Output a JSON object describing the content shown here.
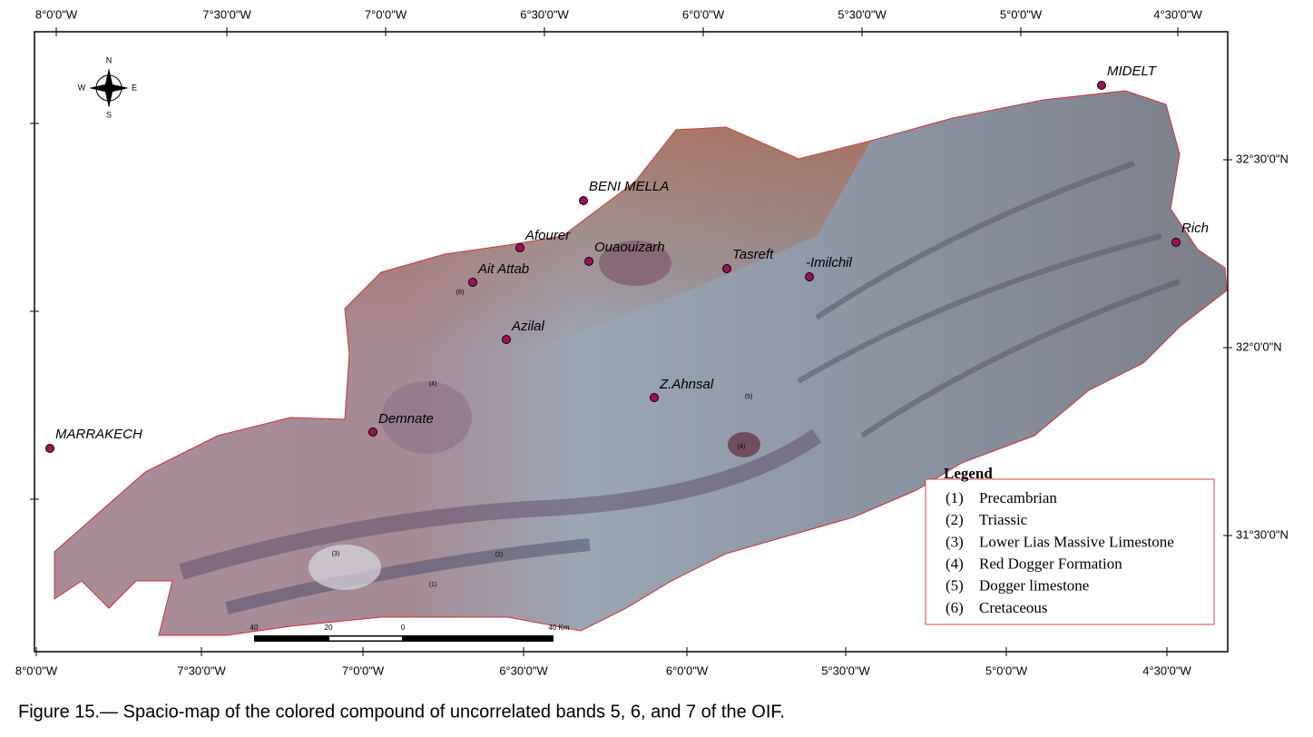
{
  "map": {
    "longitude_labels_top": [
      "8°0'0\"W",
      "7°30'0\"W",
      "7°0'0\"W",
      "6°30'0\"W",
      "6°0'0\"W",
      "5°30'0\"W",
      "5°0'0\"W",
      "4°30'0\"W"
    ],
    "longitude_labels_bottom": [
      "8°0'0\"W",
      "7°30'0\"W",
      "7°0'0\"W",
      "6°30'0\"W",
      "6°0'0\"W",
      "5°30'0\"W",
      "5°0'0\"W",
      "4°30'0\"W"
    ],
    "latitude_labels": [
      "32°30'0\"N",
      "32°0'0\"N",
      "31°30'0\"N"
    ],
    "compass": {
      "north": "N",
      "south": "S",
      "east": "E",
      "west": "W"
    },
    "cities": [
      "MIDELT",
      "BENI MELLA",
      "Afourer",
      "Ouaouizarh",
      "Ait Attab",
      "Tasreft",
      "-Imilchil",
      "Rich",
      "Azilal",
      "Z.Ahnsal",
      "Demnate",
      "MARRAKECH"
    ],
    "unit_labels": [
      "(6)",
      "(4)",
      "(5)",
      "(4)",
      "(3)",
      "(2)",
      "(1)"
    ],
    "scale_bar": [
      "40",
      "20",
      "0",
      "40 Km"
    ],
    "legend": {
      "title": "Legend",
      "items": [
        {
          "number": "(1)",
          "name": "Precambrian"
        },
        {
          "number": "(2)",
          "name": "Triassic"
        },
        {
          "number": "(3)",
          "name": "Lower Lias Massive Limestone"
        },
        {
          "number": "(4)",
          "name": "Red Dogger Formation"
        },
        {
          "number": "(5)",
          "name": "Dogger limestone"
        },
        {
          "number": "(6)",
          "name": "Cretaceous"
        }
      ]
    }
  },
  "caption": "Figure 15.— Spacio-map of the colored compound of uncorrelated bands 5, 6, and 7 of the OIF."
}
